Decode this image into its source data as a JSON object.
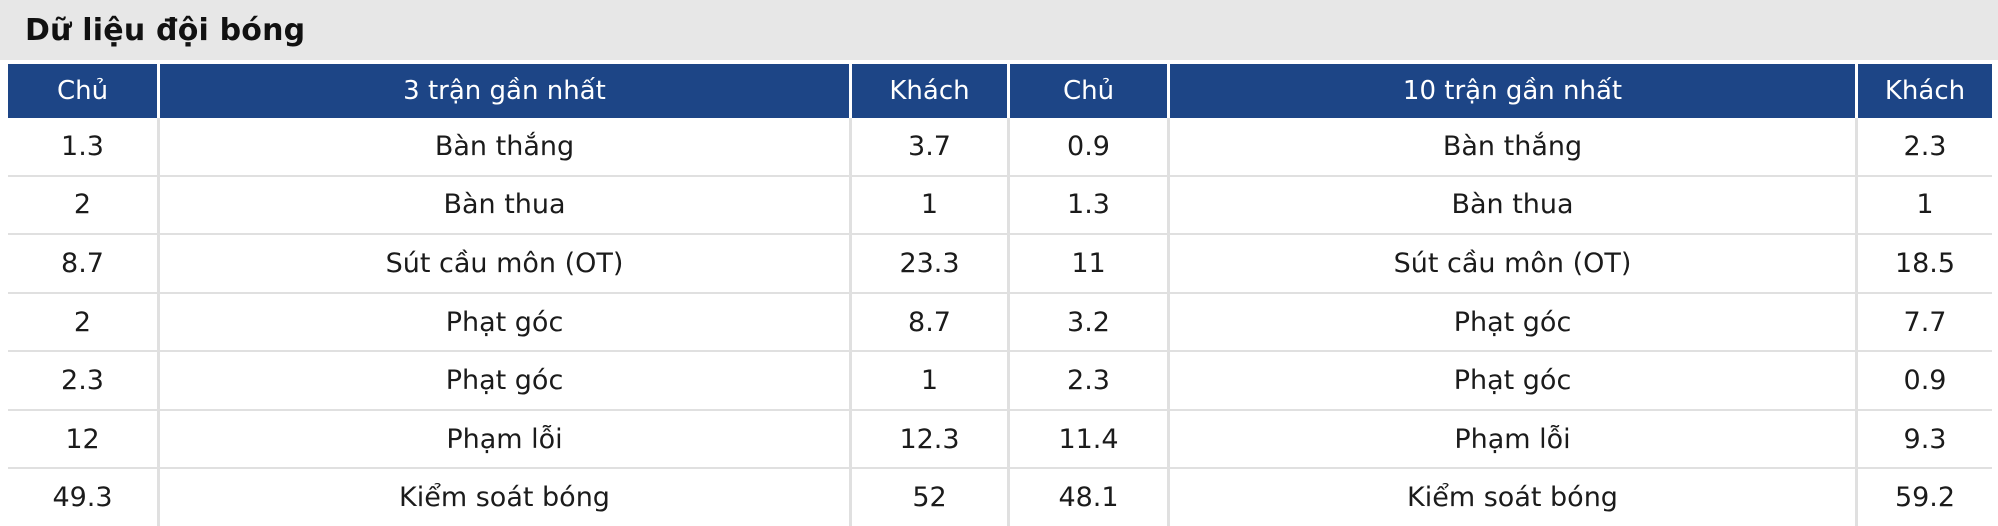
{
  "title": "Dữ liệu đội bóng",
  "colors": {
    "header_bg": "#1d4586",
    "title_bar_bg": "#e7e7e7",
    "divider": "#e0e0e0",
    "header_text": "#ffffff",
    "body_text": "#1b1b1b"
  },
  "table": {
    "header": {
      "home_left": "Chủ",
      "last3": "3 trận gần nhất",
      "away_left": "Khách",
      "home_right": "Chủ",
      "last10": "10 trận gần nhất",
      "away_right": "Khách"
    },
    "rows": [
      {
        "home3": "1.3",
        "label3": "Bàn thắng",
        "away3": "3.7",
        "home10": "0.9",
        "label10": "Bàn thắng",
        "away10": "2.3"
      },
      {
        "home3": "2",
        "label3": "Bàn thua",
        "away3": "1",
        "home10": "1.3",
        "label10": "Bàn thua",
        "away10": "1"
      },
      {
        "home3": "8.7",
        "label3": "Sút cầu môn (OT)",
        "away3": "23.3",
        "home10": "11",
        "label10": "Sút cầu môn (OT)",
        "away10": "18.5"
      },
      {
        "home3": "2",
        "label3": "Phạt góc",
        "away3": "8.7",
        "home10": "3.2",
        "label10": "Phạt góc",
        "away10": "7.7"
      },
      {
        "home3": "2.3",
        "label3": "Phạt góc",
        "away3": "1",
        "home10": "2.3",
        "label10": "Phạt góc",
        "away10": "0.9"
      },
      {
        "home3": "12",
        "label3": "Phạm lỗi",
        "away3": "12.3",
        "home10": "11.4",
        "label10": "Phạm lỗi",
        "away10": "9.3"
      },
      {
        "home3": "49.3",
        "label3": "Kiểm soát bóng",
        "away3": "52",
        "home10": "48.1",
        "label10": "Kiểm soát bóng",
        "away10": "59.2"
      }
    ]
  }
}
